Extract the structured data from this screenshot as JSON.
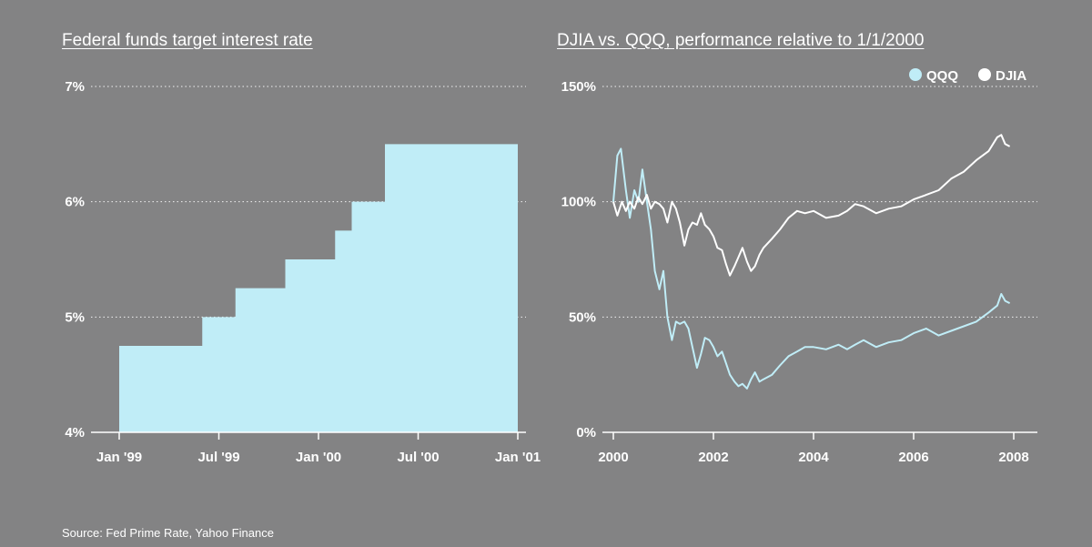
{
  "colors": {
    "background": "#838384",
    "fed_fill": "#c0edf7",
    "qqq": "#c0edf7",
    "djia": "#ffffff"
  },
  "source": "Source: Fed Prime Rate, Yahoo Finance",
  "chart_data": [
    {
      "type": "area",
      "title": "Federal funds target interest rate",
      "xlabel": "",
      "ylabel": "",
      "ylim": [
        4,
        7
      ],
      "xlim": [
        "1999-01",
        "2001-01"
      ],
      "yticks": [
        "4%",
        "5%",
        "6%",
        "7%"
      ],
      "xticks": [
        "Jan '99",
        "Jul '99",
        "Jan '00",
        "Jul '00",
        "Jan '01"
      ],
      "grid": true,
      "step": true,
      "series": [
        {
          "x": [
            "1999-01",
            "1999-06",
            "1999-08",
            "1999-11",
            "2000-02",
            "2000-03",
            "2000-05",
            "2000-12"
          ],
          "values": [
            4.75,
            5.0,
            5.25,
            5.5,
            5.75,
            6.0,
            6.5,
            6.5
          ]
        }
      ]
    },
    {
      "type": "line",
      "title": "DJIA vs. QQQ, performance relative to 1/1/2000",
      "xlabel": "",
      "ylabel": "",
      "ylim": [
        0,
        150
      ],
      "xlim": [
        2000,
        2008
      ],
      "yticks": [
        "0%",
        "50%",
        "100%",
        "150%"
      ],
      "xticks": [
        "2000",
        "2002",
        "2004",
        "2006",
        "2008"
      ],
      "grid": true,
      "legend": "top-right",
      "series": [
        {
          "name": "QQQ",
          "color": "#c0edf7",
          "x": [
            2000.0,
            2000.08,
            2000.15,
            2000.25,
            2000.33,
            2000.42,
            2000.5,
            2000.58,
            2000.67,
            2000.75,
            2000.83,
            2000.92,
            2001.0,
            2001.08,
            2001.17,
            2001.25,
            2001.33,
            2001.42,
            2001.5,
            2001.58,
            2001.67,
            2001.75,
            2001.83,
            2001.92,
            2002.0,
            2002.08,
            2002.17,
            2002.25,
            2002.33,
            2002.42,
            2002.5,
            2002.58,
            2002.67,
            2002.75,
            2002.83,
            2002.92,
            2003.0,
            2003.17,
            2003.33,
            2003.5,
            2003.67,
            2003.83,
            2004.0,
            2004.25,
            2004.5,
            2004.67,
            2004.83,
            2005.0,
            2005.25,
            2005.5,
            2005.75,
            2006.0,
            2006.25,
            2006.5,
            2006.75,
            2007.0,
            2007.25,
            2007.5,
            2007.67,
            2007.75,
            2007.83,
            2007.92
          ],
          "values": [
            100,
            120,
            123,
            105,
            93,
            105,
            100,
            114,
            100,
            88,
            70,
            62,
            70,
            50,
            40,
            48,
            47,
            48,
            45,
            37,
            28,
            34,
            41,
            40,
            37,
            33,
            35,
            30,
            25,
            22,
            20,
            21,
            19,
            23,
            26,
            22,
            23,
            25,
            29,
            33,
            35,
            37,
            37,
            36,
            38,
            36,
            38,
            40,
            37,
            39,
            40,
            43,
            45,
            42,
            44,
            46,
            48,
            52,
            55,
            60,
            57,
            56
          ]
        },
        {
          "name": "DJIA",
          "color": "#ffffff",
          "x": [
            2000.0,
            2000.08,
            2000.17,
            2000.25,
            2000.33,
            2000.42,
            2000.5,
            2000.58,
            2000.67,
            2000.75,
            2000.83,
            2000.92,
            2001.0,
            2001.08,
            2001.17,
            2001.25,
            2001.33,
            2001.42,
            2001.5,
            2001.58,
            2001.67,
            2001.75,
            2001.83,
            2001.92,
            2002.0,
            2002.08,
            2002.17,
            2002.25,
            2002.33,
            2002.42,
            2002.5,
            2002.58,
            2002.67,
            2002.75,
            2002.83,
            2002.92,
            2003.0,
            2003.17,
            2003.33,
            2003.5,
            2003.67,
            2003.83,
            2004.0,
            2004.25,
            2004.5,
            2004.67,
            2004.83,
            2005.0,
            2005.25,
            2005.5,
            2005.75,
            2006.0,
            2006.25,
            2006.5,
            2006.75,
            2007.0,
            2007.25,
            2007.5,
            2007.67,
            2007.75,
            2007.83,
            2007.92
          ],
          "values": [
            100,
            94,
            100,
            96,
            100,
            97,
            102,
            99,
            103,
            97,
            100,
            99,
            97,
            91,
            100,
            97,
            91,
            81,
            88,
            91,
            90,
            95,
            90,
            88,
            85,
            80,
            79,
            73,
            68,
            72,
            76,
            80,
            74,
            70,
            72,
            77,
            80,
            84,
            88,
            93,
            96,
            95,
            96,
            93,
            94,
            96,
            99,
            98,
            95,
            97,
            98,
            101,
            103,
            105,
            110,
            113,
            118,
            122,
            128,
            129,
            125,
            124
          ]
        }
      ]
    }
  ]
}
